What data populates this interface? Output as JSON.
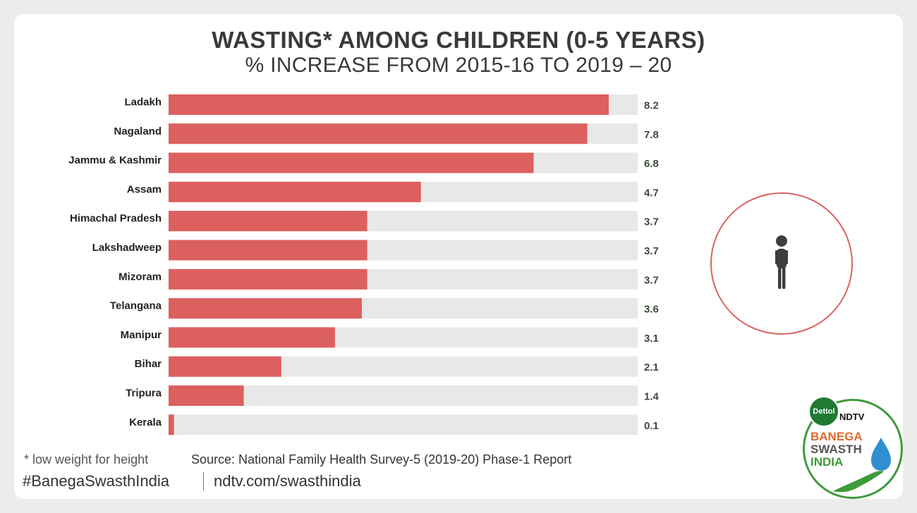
{
  "header": {
    "title": "WASTING* AMONG CHILDREN (0-5 YEARS)",
    "subtitle": "% INCREASE FROM 2015-16 TO 2019 – 20"
  },
  "chart_data": {
    "type": "bar",
    "orientation": "horizontal",
    "title": "WASTING* AMONG CHILDREN (0-5 YEARS)",
    "subtitle": "% INCREASE FROM 2015-16 TO 2019 – 20",
    "categories": [
      "Ladakh",
      "Nagaland",
      "Jammu & Kashmir",
      "Assam",
      "Himachal Pradesh",
      "Lakshadweep",
      "Mizoram",
      "Telangana",
      "Manipur",
      "Bihar",
      "Tripura",
      "Kerala"
    ],
    "values": [
      8.2,
      7.8,
      6.8,
      4.7,
      3.7,
      3.7,
      3.7,
      3.6,
      3.1,
      2.1,
      1.4,
      0.1
    ],
    "value_labels": [
      "8.2",
      "7.8",
      "6.8",
      "4.7",
      "3.7",
      "3.7",
      "3.7",
      "3.6",
      "3.1",
      "2.1",
      "1.4",
      "0.1"
    ],
    "bar_color": "#dc605e",
    "track_color": "#e8e8e8",
    "grid": false
  },
  "footer": {
    "footnote": "* low weight for height",
    "source": "Source: National Family Health Survey-5 (2019-20) Phase-1 Report",
    "hashtag": "#BanegaSwasthIndia",
    "website": "ndtv.com/swasthindia"
  },
  "icons": {
    "child": "child-figure-icon"
  },
  "logo": {
    "dettol": "Dettol",
    "ndtv": "NDTV",
    "line1": "BANEGA",
    "line2": "SWASTH",
    "line3": "INDIA"
  },
  "colors": {
    "accent": "#dc605e",
    "text": "#3a3a3a",
    "logo_green": "#3f9a3b",
    "logo_orange": "#e0682a"
  }
}
